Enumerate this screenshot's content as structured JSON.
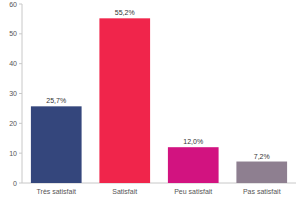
{
  "chart_data": {
    "type": "bar",
    "categories": [
      "Très satisfait",
      "Satisfait",
      "Peu satisfait",
      "Pas satisfait"
    ],
    "values": [
      25.7,
      55.2,
      12.0,
      7.2
    ],
    "value_labels": [
      "25,7%",
      "55,2%",
      "12,0%",
      "7,2%"
    ],
    "colors": [
      "#34467c",
      "#f0254b",
      "#d21380",
      "#8e7f90"
    ],
    "ylim": [
      0,
      60
    ],
    "yticks": [
      0,
      10,
      20,
      30,
      40,
      50,
      60
    ],
    "grid": false,
    "data_labels": true
  }
}
